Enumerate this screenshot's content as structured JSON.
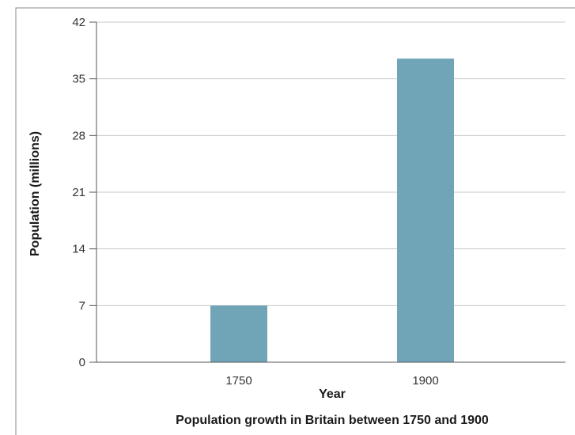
{
  "chart_data": {
    "type": "bar",
    "categories": [
      "1750",
      "1900"
    ],
    "values": [
      7,
      37.5
    ],
    "xlabel": "Year",
    "ylabel": "Population (millions)",
    "ylim": [
      0,
      42
    ],
    "yticks": [
      0,
      7,
      14,
      21,
      28,
      35,
      42
    ],
    "caption": "Population growth in Britain between 1750 and 1900",
    "grid": true,
    "bar_color": "#6fa5b7",
    "grid_color": "#c8c8c8",
    "axis_color": "#555555"
  }
}
